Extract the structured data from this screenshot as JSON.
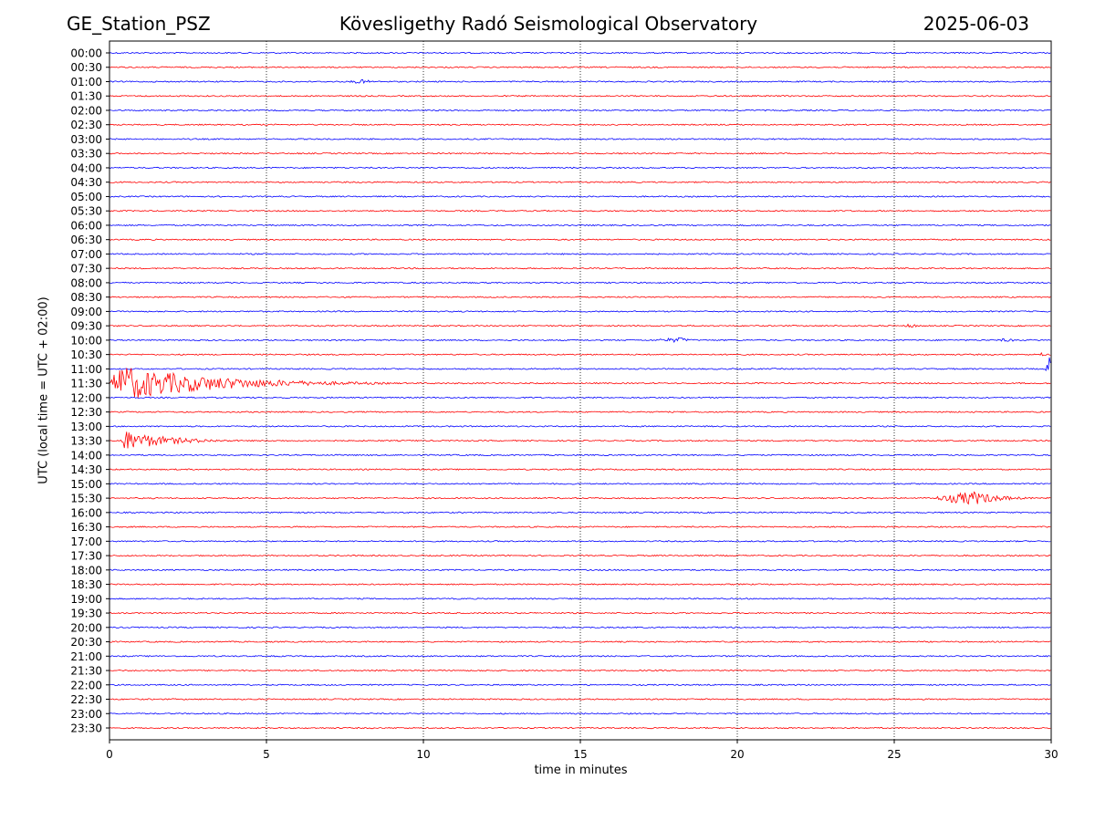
{
  "header": {
    "station": "GE_Station_PSZ",
    "observatory": "Kövesligethy Radó Seismological Observatory",
    "date": "2025-06-03"
  },
  "chart_data": {
    "type": "line",
    "title": "Kövesligethy Radó Seismological Observatory",
    "xlabel": "time in minutes",
    "ylabel": "UTC (local time = UTC + 02:00)",
    "xlim": [
      0,
      30
    ],
    "x_ticks": [
      0,
      5,
      10,
      15,
      20,
      25,
      30
    ],
    "grid": "vertical dotted at x ticks",
    "colors": {
      "even_rows": "#0000ff",
      "odd_rows": "#ff0000"
    },
    "rows": [
      "00:00",
      "00:30",
      "01:00",
      "01:30",
      "02:00",
      "02:30",
      "03:00",
      "03:30",
      "04:00",
      "04:30",
      "05:00",
      "05:30",
      "06:00",
      "06:30",
      "07:00",
      "07:30",
      "08:00",
      "08:30",
      "09:00",
      "09:30",
      "10:00",
      "10:30",
      "11:00",
      "11:30",
      "12:00",
      "12:30",
      "13:00",
      "13:30",
      "14:00",
      "14:30",
      "15:00",
      "15:30",
      "16:00",
      "16:30",
      "17:00",
      "17:30",
      "18:00",
      "18:30",
      "19:00",
      "19:30",
      "20:00",
      "20:30",
      "21:00",
      "21:30",
      "22:00",
      "22:30",
      "23:00",
      "23:30"
    ],
    "events": [
      {
        "row": "01:00",
        "start": 7.4,
        "peak": 8.0,
        "end": 9.5,
        "amp": 2.5
      },
      {
        "row": "09:30",
        "start": 25.3,
        "peak": 25.5,
        "end": 26.2,
        "amp": 3
      },
      {
        "row": "10:00",
        "start": 17.0,
        "peak": 18.2,
        "end": 19.2,
        "amp": 3
      },
      {
        "row": "10:00",
        "start": 28.0,
        "peak": 28.6,
        "end": 29.5,
        "amp": 2
      },
      {
        "row": "10:30",
        "start": 29.6,
        "peak": 29.7,
        "end": 30.0,
        "amp": 3
      },
      {
        "row": "11:00",
        "start": 29.8,
        "peak": 30.0,
        "end": 30.0,
        "amp": 18
      },
      {
        "row": "11:30",
        "start": 0.0,
        "peak": 0.3,
        "end": 9.0,
        "amp": 20
      },
      {
        "row": "13:30",
        "start": 0.3,
        "peak": 0.4,
        "end": 4.5,
        "amp": 12
      },
      {
        "row": "15:30",
        "start": 26.0,
        "peak": 27.5,
        "end": 30.0,
        "amp": 8
      }
    ]
  }
}
